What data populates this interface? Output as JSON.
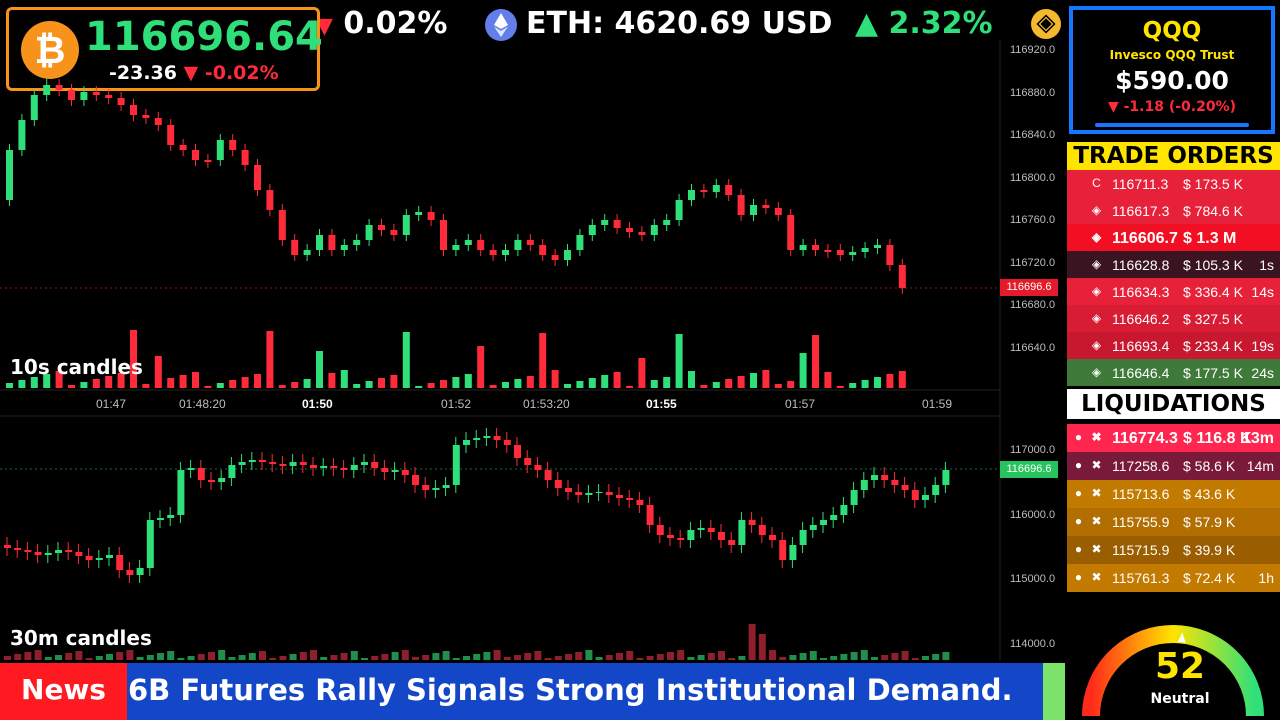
{
  "ticker": {
    "btc_tail": "0.02%",
    "eth_label": "ETH: 4620.69 USD",
    "eth_change": "▲ 2.32%"
  },
  "btc": {
    "symbol": "₿",
    "price": "116696.64",
    "change": "-23.36",
    "change_pct": "▼ -0.02%"
  },
  "chart_top": {
    "caption": "10s candles",
    "y_ticks": [
      "116920.0",
      "116880.0",
      "116840.0",
      "116800.0",
      "116760.0",
      "116720.0",
      "116680.0",
      "116640.0"
    ],
    "current_price": "116696.6",
    "x_ticks": [
      "01:47",
      "01:48:20",
      "01:50",
      "01:52",
      "01:53:20",
      "01:55",
      "01:57",
      "01:59"
    ]
  },
  "chart_bottom": {
    "caption": "30m candles",
    "y_ticks": [
      "117000.0",
      "116000.0",
      "115000.0",
      "114000.0"
    ],
    "current_price": "116696.6"
  },
  "qqq": {
    "symbol": "QQQ",
    "name": "Invesco QQQ Trust",
    "price": "$590.00",
    "change": "▼ -1.18 (-0.20%)"
  },
  "trade_orders": {
    "title": "TRADE ORDERS",
    "rows": [
      {
        "price": "116711.3",
        "amount": "$ 173.5 K",
        "time": "",
        "icon": "C",
        "bg": "#e8213a"
      },
      {
        "price": "116617.3",
        "amount": "$ 784.6 K",
        "time": "",
        "icon": "◈",
        "bg": "#e8213a"
      },
      {
        "price": "116606.7",
        "amount": "$ 1.3 M",
        "time": "",
        "icon": "◈",
        "bg": "#f20f24"
      },
      {
        "price": "116628.8",
        "amount": "$ 105.3 K",
        "time": "1s",
        "icon": "◈",
        "bg": "#3a1420"
      },
      {
        "price": "116634.3",
        "amount": "$ 336.4 K",
        "time": "14s",
        "icon": "◈",
        "bg": "#e8213a"
      },
      {
        "price": "116646.2",
        "amount": "$ 327.5 K",
        "time": "",
        "icon": "◈",
        "bg": "#d81c34"
      },
      {
        "price": "116693.4",
        "amount": "$ 233.4 K",
        "time": "19s",
        "icon": "◈",
        "bg": "#c81830"
      },
      {
        "price": "116646.4",
        "amount": "$ 177.5 K",
        "time": "24s",
        "icon": "◈",
        "bg": "#3f7a3a"
      }
    ]
  },
  "liquidations": {
    "title": "LIQUIDATIONS",
    "rows": [
      {
        "price": "116774.3",
        "amount": "$ 116.8 K",
        "time": "13m",
        "bg": "#ff2650"
      },
      {
        "price": "117258.6",
        "amount": "$ 58.6 K",
        "time": "14m",
        "bg": "#7a1a3a"
      },
      {
        "price": "115713.6",
        "amount": "$ 43.6 K",
        "time": "",
        "bg": "#c27a00"
      },
      {
        "price": "115755.9",
        "amount": "$ 57.9 K",
        "time": "",
        "bg": "#b26e00"
      },
      {
        "price": "115715.9",
        "amount": "$ 39.9 K",
        "time": "",
        "bg": "#9a5e00"
      },
      {
        "price": "115761.3",
        "amount": "$ 72.4 K",
        "time": "1h",
        "bg": "#c27a00"
      }
    ]
  },
  "gauge": {
    "value": "52",
    "label": "Neutral",
    "level": 52
  },
  "news": {
    "label": "News",
    "headline": "6B Futures Rally Signals Strong Institutional Demand."
  },
  "colors": {
    "up": "#2fe07a",
    "down": "#ff2a3a",
    "accent_btc": "#f7931a",
    "accent_qqq": "#1576ff"
  }
}
